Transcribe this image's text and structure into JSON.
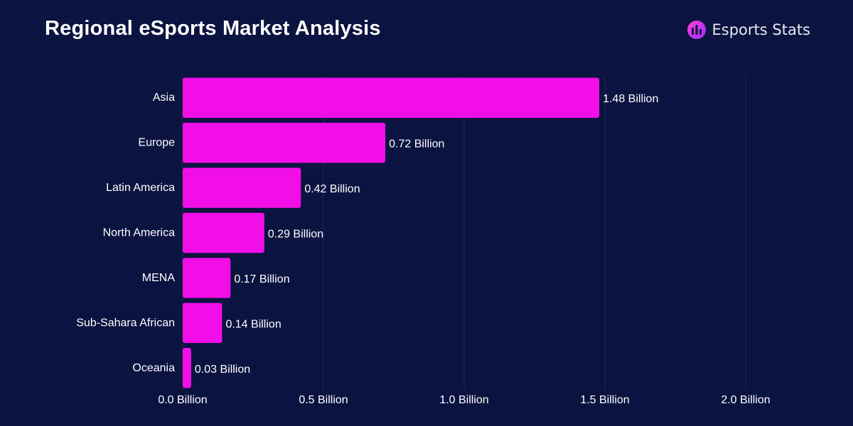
{
  "header": {
    "title": "Regional eSports Market Analysis",
    "brand_name": "Esports Stats",
    "brand_icon": "esports-stats-logo-icon"
  },
  "colors": {
    "background": "#0b1340",
    "bar": "#f20ee6",
    "grid": "#1f2a5c",
    "text": "#ffffff"
  },
  "chart_data": {
    "type": "bar",
    "orientation": "horizontal",
    "title": "Regional eSports Market Analysis",
    "xlabel": "",
    "ylabel": "",
    "categories": [
      "Asia",
      "Europe",
      "Latin America",
      "North America",
      "MENA",
      "Sub-Sahara African",
      "Oceania"
    ],
    "values": [
      1.48,
      0.72,
      0.42,
      0.29,
      0.17,
      0.14,
      0.03
    ],
    "value_labels": [
      "1.48 Billion",
      "0.72 Billion",
      "0.42 Billion",
      "0.29 Billion",
      "0.17 Billion",
      "0.14 Billion",
      "0.03 Billion"
    ],
    "xlim": [
      0,
      2.0
    ],
    "xticks": [
      0,
      0.5,
      1.0,
      1.5,
      2.0
    ],
    "xtick_labels": [
      "0.0 Billion",
      "0.5 Billion",
      "1.0 Billion",
      "1.5 Billion",
      "2.0 Billion"
    ],
    "grid": true,
    "legend": "none"
  }
}
